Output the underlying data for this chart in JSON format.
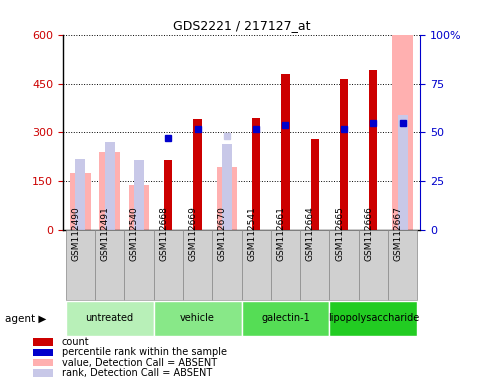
{
  "title": "GDS2221 / 217127_at",
  "samples": [
    "GSM112490",
    "GSM112491",
    "GSM112540",
    "GSM112668",
    "GSM112669",
    "GSM112670",
    "GSM112541",
    "GSM112661",
    "GSM112664",
    "GSM112665",
    "GSM112666",
    "GSM112667"
  ],
  "groups": [
    {
      "label": "untreated",
      "indices": [
        0,
        1,
        2
      ],
      "color": "#b8f0b8"
    },
    {
      "label": "vehicle",
      "indices": [
        3,
        4,
        5
      ],
      "color": "#88e888"
    },
    {
      "label": "galectin-1",
      "indices": [
        6,
        7,
        8
      ],
      "color": "#55dd55"
    },
    {
      "label": "lipopolysaccharide",
      "indices": [
        9,
        10,
        11
      ],
      "color": "#22cc22"
    }
  ],
  "count": [
    null,
    null,
    null,
    215,
    340,
    null,
    345,
    480,
    280,
    465,
    490,
    null
  ],
  "value_absent": [
    175,
    240,
    140,
    null,
    null,
    195,
    null,
    null,
    null,
    null,
    null,
    600
  ],
  "rank_absent": [
    220,
    270,
    215,
    null,
    null,
    265,
    null,
    null,
    null,
    null,
    null,
    355
  ],
  "percentile_rank": [
    null,
    null,
    null,
    47,
    52,
    null,
    52,
    54,
    null,
    52,
    55,
    55
  ],
  "percentile_absent": [
    28,
    null,
    27,
    null,
    null,
    48,
    null,
    null,
    null,
    null,
    null,
    null
  ],
  "ylim_left": [
    0,
    600
  ],
  "ylim_right": [
    0,
    100
  ],
  "yticks_left": [
    0,
    150,
    300,
    450,
    600
  ],
  "yticks_right": [
    0,
    25,
    50,
    75,
    100
  ],
  "left_axis_color": "#cc0000",
  "right_axis_color": "#0000cc",
  "count_color": "#cc0000",
  "percentile_color": "#0000cc",
  "value_absent_color": "#ffb0b0",
  "rank_absent_color": "#c8c8e8",
  "label_box_color": "#d0d0d0",
  "label_box_edge": "#888888"
}
